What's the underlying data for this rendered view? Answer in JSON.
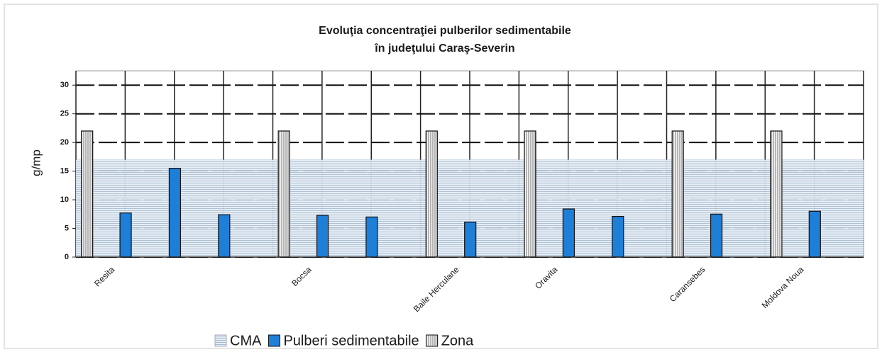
{
  "chart_data": {
    "type": "bar",
    "title": [
      "Evoluţia concentraţiei  pulberilor sedimentabile",
      "în judeţului Caraş-Severin"
    ],
    "y_label": "g/mp",
    "categories": [
      "Resita",
      null,
      null,
      null,
      "Bocsa",
      null,
      null,
      "Baile Herculane",
      null,
      "Oravita",
      null,
      null,
      "Caransebes",
      null,
      "Moldova Noua",
      null
    ],
    "series": [
      {
        "name": "CMA",
        "color": "#e4ecf4",
        "values": [
          17,
          17,
          17,
          17,
          17,
          17,
          17,
          17,
          17,
          17,
          17,
          17,
          17,
          17,
          17,
          17
        ]
      },
      {
        "name": "Pulberi sedimentabile",
        "color": "#1e7fd8",
        "values": [
          null,
          7.7,
          15.5,
          7.4,
          null,
          7.3,
          7.0,
          null,
          6.1,
          null,
          8.4,
          7.1,
          null,
          7.5,
          null,
          8.0
        ]
      },
      {
        "name": "Zona",
        "color": "#d8d8d8",
        "values": [
          22,
          null,
          null,
          null,
          22,
          null,
          null,
          22,
          null,
          22,
          null,
          null,
          22,
          null,
          22,
          null
        ]
      }
    ],
    "ylim": [
      0,
      32.5
    ],
    "yticks": [
      0,
      5,
      10,
      15,
      20,
      25,
      30
    ],
    "grid": true,
    "legend": "bottom"
  }
}
